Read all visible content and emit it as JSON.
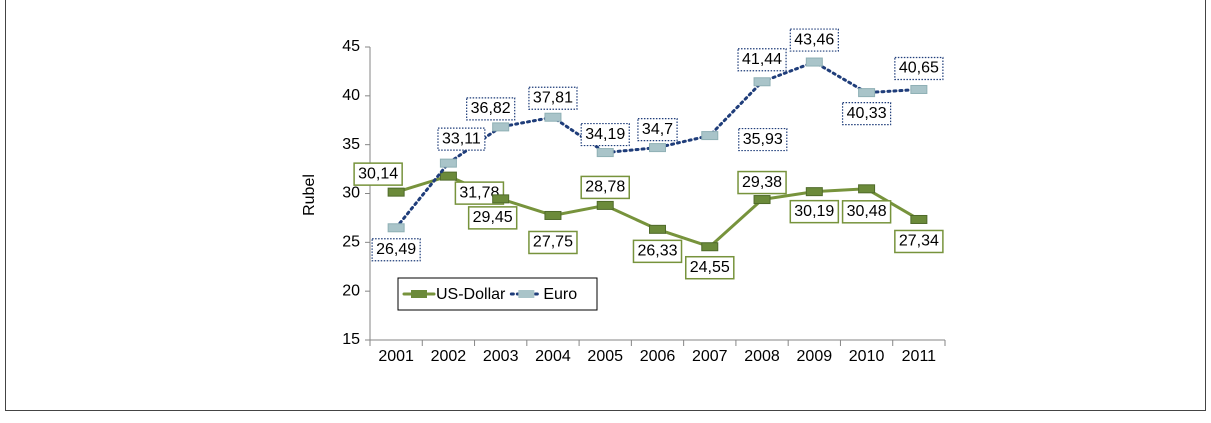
{
  "chart_data": {
    "type": "line",
    "y_label": "Rubel",
    "categories": [
      "2001",
      "2002",
      "2003",
      "2004",
      "2005",
      "2006",
      "2007",
      "2008",
      "2009",
      "2010",
      "2011"
    ],
    "series": [
      {
        "name": "US-Dollar",
        "color": "#77933c",
        "values": [
          30.14,
          31.78,
          29.45,
          27.75,
          28.78,
          26.33,
          24.55,
          29.38,
          30.19,
          30.48,
          27.34
        ],
        "value_labels": [
          "30,14",
          "31,78",
          "29,45",
          "27,75",
          "28,78",
          "26,33",
          "24,55",
          "29,38",
          "30,19",
          "30,48",
          "27,34"
        ]
      },
      {
        "name": "Euro",
        "color": "#1f3d7a",
        "values": [
          26.49,
          33.11,
          36.82,
          37.81,
          34.19,
          34.7,
          35.93,
          41.44,
          43.46,
          40.33,
          40.65
        ],
        "value_labels": [
          "26,49",
          "33,11",
          "36,82",
          "37,81",
          "34,19",
          "34,7",
          "35,93",
          "41,44",
          "43,46",
          "40,33",
          "40,65"
        ]
      }
    ],
    "ylim": [
      15,
      45
    ],
    "yticks": [
      15,
      20,
      25,
      30,
      35,
      40,
      45
    ],
    "legend": "bottom-left"
  }
}
